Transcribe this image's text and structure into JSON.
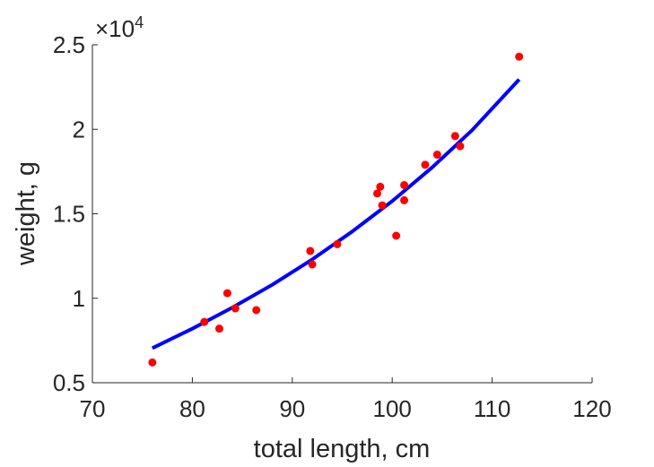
{
  "chart_data": {
    "type": "scatter",
    "xlabel": "total length, cm",
    "ylabel": "weight, g",
    "y_exponent_label": "×10⁴",
    "y_exponent_base": "×10",
    "y_exponent_power": "4",
    "xlim": [
      70,
      120
    ],
    "ylim": [
      5000,
      25000
    ],
    "x_ticks": [
      70,
      80,
      90,
      100,
      110,
      120
    ],
    "x_tick_labels": [
      "70",
      "80",
      "90",
      "100",
      "110",
      "120"
    ],
    "y_ticks": [
      5000,
      10000,
      15000,
      20000,
      25000
    ],
    "y_tick_labels": [
      "0.5",
      "1",
      "1.5",
      "2",
      "2.5"
    ],
    "grid": false,
    "box": "left-bottom",
    "colors": {
      "points": "#ff0000",
      "fit": "#0000ff",
      "axes": "#262626"
    },
    "series": [
      {
        "kind": "points",
        "x": [
          76.0,
          81.2,
          82.7,
          83.5,
          84.3,
          86.4,
          91.8,
          92.0,
          94.5,
          98.5,
          98.8,
          99.0,
          100.4,
          101.2,
          101.2,
          103.3,
          104.5,
          106.3,
          106.8,
          112.7
        ],
        "y": [
          6200,
          8600,
          8200,
          10300,
          9400,
          9300,
          12800,
          12000,
          13200,
          16200,
          16600,
          15500,
          13700,
          16700,
          15800,
          17900,
          18500,
          19600,
          19000,
          24300
        ]
      },
      {
        "kind": "fit-curve",
        "x": [
          76.0,
          80.0,
          84.0,
          88.0,
          92.0,
          96.0,
          100.0,
          104.0,
          108.0,
          112.7
        ],
        "y": [
          7050,
          8200,
          9450,
          10800,
          12300,
          13950,
          15750,
          17750,
          19950,
          22950
        ]
      }
    ]
  }
}
